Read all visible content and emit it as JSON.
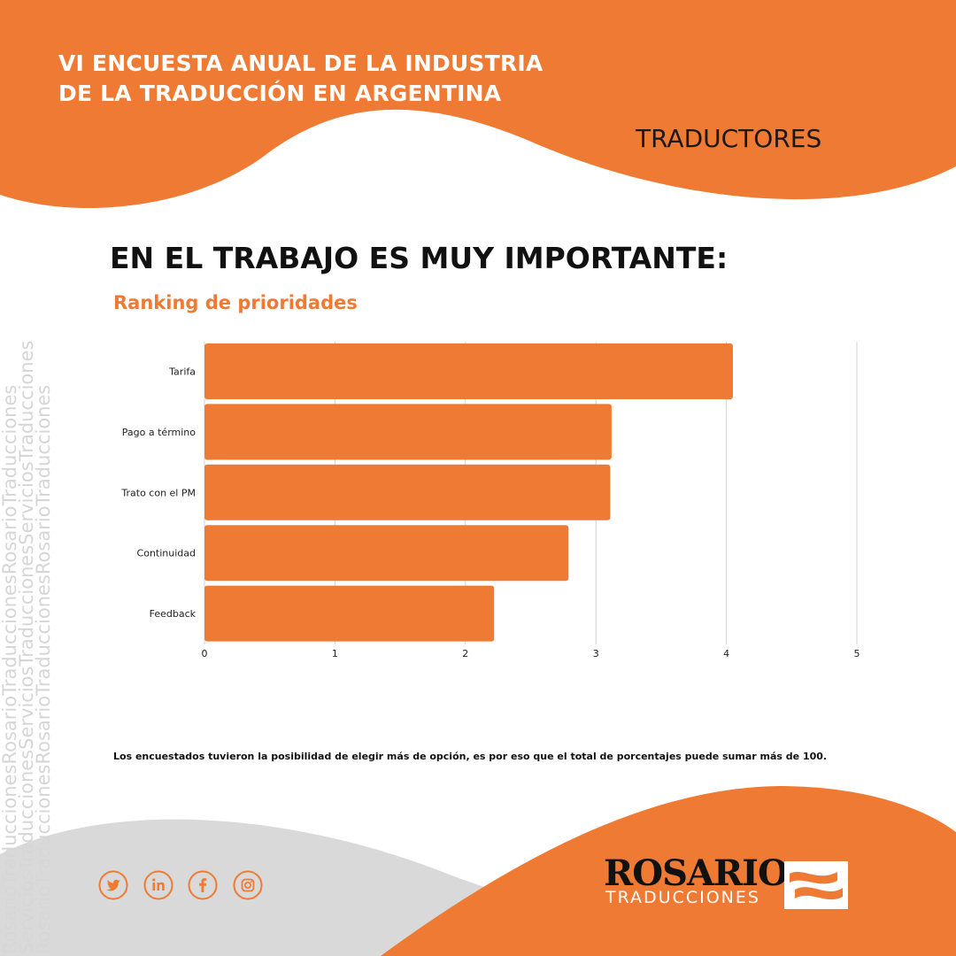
{
  "header": {
    "title_line1": "VI ENCUESTA ANUAL DE LA INDUSTRIA",
    "title_line2": "DE LA TRADUCCIÓN EN ARGENTINA",
    "section": "TRADUCTORES"
  },
  "watermark": {
    "line1": "RosarioTraduccionesRosarioTraduccionesRosarioTraducciones",
    "line2": "ServiciosTraduccionesServiciosTraduccionesServiciosTraducciones",
    "line3": "RosarioTraduccionesRosarioTraduccionesRosarioTraducciones"
  },
  "heading": "EN EL TRABAJO ES MUY IMPORTANTE:",
  "chart_data": {
    "type": "bar",
    "orientation": "horizontal",
    "title": "Ranking de prioridades",
    "categories": [
      "Tarifa",
      "Pago a término",
      "Trato con el PM",
      "Continuidad",
      "Feedback"
    ],
    "values": [
      4.05,
      3.12,
      3.11,
      2.79,
      2.22
    ],
    "x_ticks": [
      "0",
      "1",
      "2",
      "3",
      "4",
      "5"
    ],
    "xlim": [
      0,
      5
    ],
    "grid": true,
    "bar_color": "#ef7a33"
  },
  "footnote": "Los encuestados tuvieron la posibilidad de elegir más de opción, es por eso que el total de porcentajes puede sumar más de 100.",
  "social": [
    {
      "icon": "twitter-icon"
    },
    {
      "icon": "linkedin-icon"
    },
    {
      "icon": "facebook-icon"
    },
    {
      "icon": "instagram-icon"
    }
  ],
  "logo": {
    "line1": "ROSARIO",
    "line2": "TRADUCCIONES"
  },
  "colors": {
    "accent": "#ef7a33",
    "gray": "#d9d9d9",
    "text": "#111111"
  }
}
